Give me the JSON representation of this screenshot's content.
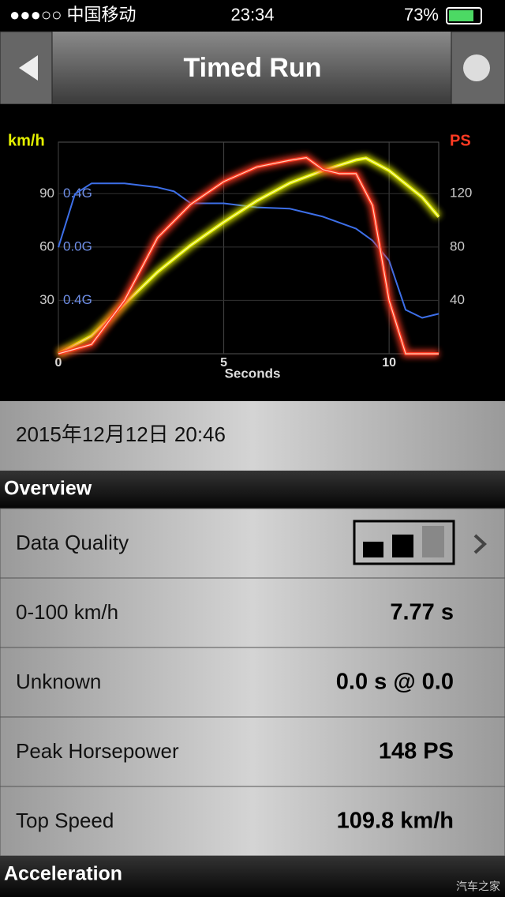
{
  "status_bar": {
    "carrier": "●●●○○ 中国移动",
    "time": "23:34",
    "battery": "73%"
  },
  "nav": {
    "title": "Timed Run"
  },
  "chart_data": {
    "type": "line",
    "x_label": "Seconds",
    "y_label": "km/h",
    "y2_label": "PS",
    "xlim": [
      0,
      11.5
    ],
    "xticks": [
      0,
      5,
      10
    ],
    "ylim": [
      0,
      119
    ],
    "yticks": [
      30,
      60,
      90
    ],
    "y2lim": [
      0,
      158.6
    ],
    "y2ticks": [
      40,
      80,
      120
    ],
    "glim": [
      -0.8,
      0.79
    ],
    "gticks": [
      {
        "value": -0.4,
        "label": "0.4G"
      },
      {
        "value": 0,
        "label": "0.0G"
      },
      {
        "value": 0.4,
        "label": "0.4G"
      }
    ],
    "grid": true,
    "series": [
      {
        "name": "G",
        "axis": "g",
        "color": "#3d6fe8",
        "x": [
          0,
          0.5,
          1,
          2,
          3,
          3.5,
          4,
          5,
          6,
          7,
          8,
          9,
          9.5,
          10,
          10.5,
          11,
          11.5
        ],
        "values": [
          0,
          0.4,
          0.48,
          0.48,
          0.45,
          0.42,
          0.33,
          0.33,
          0.3,
          0.29,
          0.23,
          0.14,
          0.05,
          -0.1,
          -0.47,
          -0.53,
          -0.5
        ]
      },
      {
        "name": "km/h",
        "axis": "y",
        "color": "#e4f000",
        "x": [
          0,
          1,
          2,
          3,
          4,
          5,
          6,
          7,
          8,
          9,
          9.3,
          10,
          11,
          11.5
        ],
        "values": [
          0,
          10,
          28,
          46,
          61,
          74,
          86,
          96,
          103,
          109,
          110,
          103,
          88,
          77
        ]
      },
      {
        "name": "PS",
        "axis": "y2",
        "color": "#ff3a22",
        "x": [
          0,
          1,
          2,
          3,
          4,
          5,
          6,
          7,
          7.5,
          8,
          8.5,
          9,
          9.5,
          10,
          10.5,
          11.5
        ],
        "values": [
          0,
          7,
          40,
          87,
          112,
          129,
          140,
          145,
          147,
          138,
          135,
          135,
          111,
          40,
          0,
          0
        ]
      }
    ]
  },
  "date": "2015年12月12日 20:46",
  "sections": [
    {
      "title": "Overview",
      "rows": [
        {
          "label": "Data Quality"
        },
        {
          "label": "0-100 km/h",
          "value": "7.77 s"
        },
        {
          "label": "Unknown",
          "value": "0.0 s @ 0.0"
        },
        {
          "label": "Peak Horsepower",
          "value": "148 PS"
        },
        {
          "label": "Top Speed",
          "value": "109.8 km/h"
        }
      ]
    },
    {
      "title": "Acceleration"
    }
  ],
  "watermark": "汽车之家"
}
